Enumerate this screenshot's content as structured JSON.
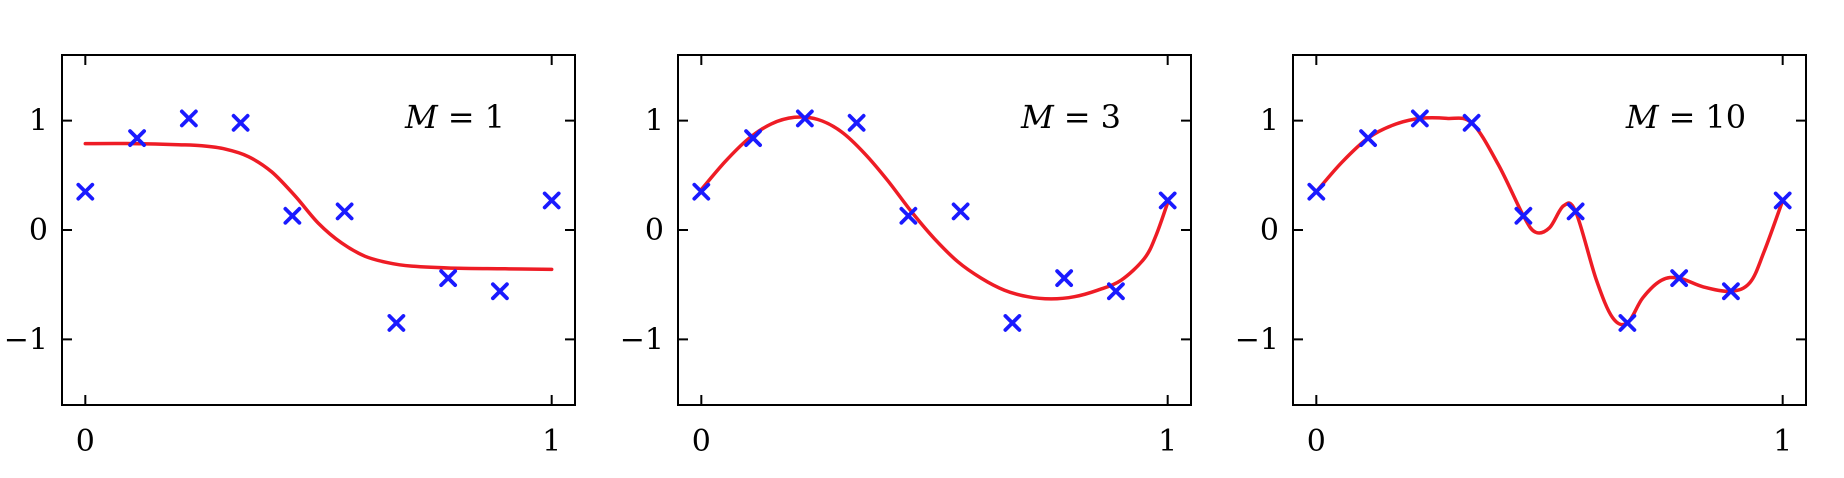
{
  "chart_data": [
    {
      "type": "scatter",
      "annotation": {
        "var": "M",
        "eq": "=",
        "value": "1"
      },
      "xlim": [
        -0.05,
        1.05
      ],
      "ylim": [
        -1.6,
        1.6
      ],
      "xticks": [
        0,
        1
      ],
      "xtick_labels": [
        "0",
        "1"
      ],
      "yticks": [
        -1,
        0,
        1
      ],
      "ytick_labels": [
        "−1",
        "0",
        "1"
      ],
      "grid": false,
      "colors": {
        "points": "#1a1aff",
        "curve": "#ee1c25"
      },
      "points": {
        "x": [
          0,
          0.111,
          0.222,
          0.333,
          0.444,
          0.556,
          0.667,
          0.778,
          0.889,
          1.0
        ],
        "y": [
          0.35,
          0.84,
          1.02,
          0.98,
          0.13,
          0.17,
          -0.85,
          -0.44,
          -0.56,
          0.27
        ]
      },
      "curve": {
        "x": [
          0,
          0.1,
          0.2,
          0.25,
          0.3,
          0.35,
          0.4,
          0.45,
          0.5,
          0.55,
          0.6,
          0.65,
          0.7,
          0.8,
          0.9,
          1.0
        ],
        "y": [
          0.79,
          0.79,
          0.78,
          0.77,
          0.74,
          0.67,
          0.53,
          0.31,
          0.06,
          -0.12,
          -0.24,
          -0.3,
          -0.33,
          -0.35,
          -0.355,
          -0.36
        ]
      }
    },
    {
      "type": "scatter",
      "annotation": {
        "var": "M",
        "eq": "=",
        "value": "3"
      },
      "xlim": [
        -0.05,
        1.05
      ],
      "ylim": [
        -1.6,
        1.6
      ],
      "xticks": [
        0,
        1
      ],
      "xtick_labels": [
        "0",
        "1"
      ],
      "yticks": [
        -1,
        0,
        1
      ],
      "ytick_labels": [
        "−1",
        "0",
        "1"
      ],
      "grid": false,
      "colors": {
        "points": "#1a1aff",
        "curve": "#ee1c25"
      },
      "points": {
        "x": [
          0,
          0.111,
          0.222,
          0.333,
          0.444,
          0.556,
          0.667,
          0.778,
          0.889,
          1.0
        ],
        "y": [
          0.35,
          0.84,
          1.02,
          0.98,
          0.13,
          0.17,
          -0.85,
          -0.44,
          -0.56,
          0.27
        ]
      },
      "curve": {
        "x": [
          0,
          0.05,
          0.1,
          0.15,
          0.2,
          0.25,
          0.3,
          0.35,
          0.4,
          0.45,
          0.5,
          0.55,
          0.6,
          0.65,
          0.7,
          0.75,
          0.8,
          0.85,
          0.9,
          0.95,
          0.975,
          1.0
        ],
        "y": [
          0.37,
          0.62,
          0.83,
          0.97,
          1.03,
          1.01,
          0.9,
          0.7,
          0.45,
          0.17,
          -0.08,
          -0.29,
          -0.44,
          -0.55,
          -0.61,
          -0.63,
          -0.61,
          -0.55,
          -0.46,
          -0.26,
          -0.05,
          0.25
        ]
      }
    },
    {
      "type": "scatter",
      "annotation": {
        "var": "M",
        "eq": "=",
        "value": "10"
      },
      "xlim": [
        -0.05,
        1.05
      ],
      "ylim": [
        -1.6,
        1.6
      ],
      "xticks": [
        0,
        1
      ],
      "xtick_labels": [
        "0",
        "1"
      ],
      "yticks": [
        -1,
        0,
        1
      ],
      "ytick_labels": [
        "−1",
        "0",
        "1"
      ],
      "grid": false,
      "colors": {
        "points": "#1a1aff",
        "curve": "#ee1c25"
      },
      "points": {
        "x": [
          0,
          0.111,
          0.222,
          0.333,
          0.444,
          0.556,
          0.667,
          0.778,
          0.889,
          1.0
        ],
        "y": [
          0.35,
          0.84,
          1.02,
          0.98,
          0.13,
          0.17,
          -0.85,
          -0.44,
          -0.56,
          0.27
        ]
      },
      "curve": {
        "x": [
          0,
          0.055,
          0.111,
          0.165,
          0.222,
          0.28,
          0.333,
          0.39,
          0.444,
          0.47,
          0.5,
          0.53,
          0.556,
          0.6,
          0.635,
          0.667,
          0.7,
          0.74,
          0.778,
          0.83,
          0.889,
          0.93,
          0.96,
          1.0
        ],
        "y": [
          0.35,
          0.62,
          0.84,
          0.96,
          1.02,
          1.02,
          0.98,
          0.6,
          0.13,
          -0.02,
          0.02,
          0.22,
          0.17,
          -0.45,
          -0.8,
          -0.85,
          -0.62,
          -0.46,
          -0.44,
          -0.52,
          -0.56,
          -0.48,
          -0.2,
          0.27
        ]
      }
    }
  ]
}
